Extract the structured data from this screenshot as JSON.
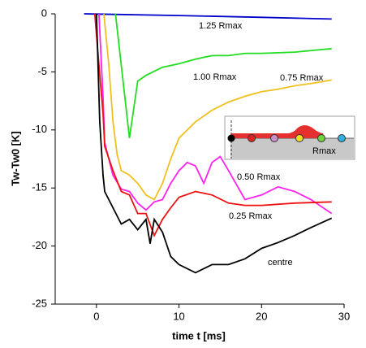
{
  "chart_data": {
    "type": "line",
    "x_label": "time t [ms]",
    "y_label": "Tw-Tw0 [K]",
    "xlim": [
      -5,
      30
    ],
    "ylim": [
      -25,
      0
    ],
    "xticks": [
      0,
      10,
      20,
      30
    ],
    "yticks": [
      0,
      -5,
      -10,
      -15,
      -20,
      -25
    ],
    "inset_label": "Rmax",
    "series": [
      {
        "name": "1.25 Rmax",
        "color": "#0000cc",
        "x": [
          -1.5,
          0,
          10,
          20,
          28.5
        ],
        "values": [
          0,
          -0.02,
          -0.15,
          -0.3,
          -0.45
        ]
      },
      {
        "name": "1.00 Rmax",
        "color": "#22dd22",
        "x": [
          2.3,
          3,
          4,
          5,
          6,
          8,
          10,
          12,
          14,
          16,
          18,
          20,
          24,
          28.5
        ],
        "values": [
          0,
          -4.4,
          -10.7,
          -5.8,
          -5.3,
          -4.6,
          -4.3,
          -3.9,
          -3.6,
          -3.6,
          -3.4,
          -3.4,
          -3.3,
          -3.0
        ]
      },
      {
        "name": "0.75 Rmax",
        "color": "#f0c020",
        "x": [
          0.9,
          1.5,
          2,
          2.5,
          3,
          4,
          5,
          6,
          7,
          8,
          9,
          10,
          12,
          14,
          16,
          18,
          20,
          22,
          24,
          26,
          28.5
        ],
        "values": [
          0,
          -4.4,
          -9.3,
          -12.1,
          -13.5,
          -13.9,
          -14.6,
          -15.6,
          -16,
          -14.6,
          -12.5,
          -10.7,
          -9.3,
          -8.3,
          -7.6,
          -7.1,
          -6.7,
          -6.5,
          -6.2,
          -6.0,
          -5.7
        ]
      },
      {
        "name": "0.50 Rmax",
        "color": "#ff22ee",
        "x": [
          0.3,
          0.8,
          1,
          2,
          3,
          4,
          5,
          6,
          7,
          8,
          9,
          10,
          11,
          12,
          13,
          14,
          15,
          16,
          18,
          20,
          22,
          24,
          26,
          28.5
        ],
        "values": [
          0,
          -7.2,
          -11.1,
          -13.9,
          -15.1,
          -15.3,
          -16.3,
          -16.9,
          -16.2,
          -16,
          -14.6,
          -13.5,
          -12.8,
          -13.1,
          -14.6,
          -12.8,
          -12.3,
          -13.5,
          -16,
          -15.6,
          -14.9,
          -15.3,
          -16,
          -17.2
        ]
      },
      {
        "name": "0.25 Rmax",
        "color": "#ee1111",
        "x": [
          -0.2,
          0.3,
          0.8,
          1,
          2,
          3,
          4,
          5,
          6,
          7,
          8,
          9,
          10,
          12,
          14,
          16,
          18,
          20,
          24,
          28.5
        ],
        "values": [
          0,
          -4.4,
          -8.6,
          -11.4,
          -13.5,
          -15.3,
          -15.6,
          -17.2,
          -17.2,
          -19.1,
          -17.7,
          -16.7,
          -15.8,
          -15.3,
          -15.6,
          -16.3,
          -16.5,
          -16.5,
          -16.3,
          -16.2
        ]
      },
      {
        "name": "centre",
        "color": "#000000",
        "x": [
          0,
          0.4,
          0.8,
          1,
          2,
          3,
          4,
          5,
          6,
          6.5,
          7,
          8,
          9,
          10,
          12,
          14,
          16,
          18,
          20,
          22,
          24,
          26,
          28.5
        ],
        "values": [
          0,
          -9.3,
          -13.9,
          -15.3,
          -16.7,
          -18.1,
          -17.7,
          -18.6,
          -17.7,
          -19.8,
          -17.7,
          -18.8,
          -20.9,
          -21.6,
          -22.3,
          -21.6,
          -21.6,
          -21.1,
          -20.2,
          -19.7,
          -19.1,
          -18.4,
          -17.6
        ]
      }
    ]
  }
}
